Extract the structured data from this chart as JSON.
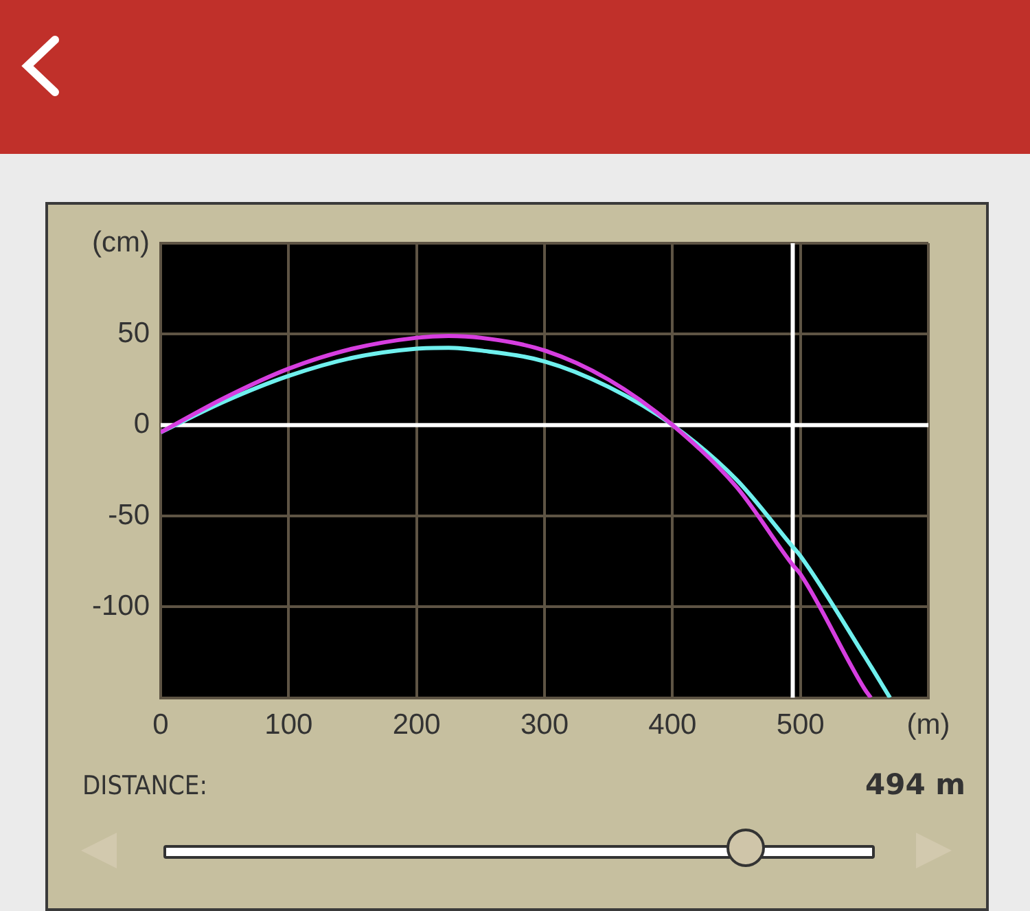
{
  "chart_data": {
    "type": "line",
    "annotations": [
      "DISTANCE:",
      "494 m"
    ],
    "xlim": [
      0,
      600
    ],
    "xticks": [
      0,
      100,
      200,
      300,
      400,
      500,
      {
        "value": 600,
        "label": "(m)"
      }
    ],
    "ylim": [
      -150,
      100
    ],
    "yticks": [
      {
        "value": -150,
        "label": null
      },
      -100,
      -50,
      0,
      50,
      {
        "value": 100,
        "label": "(cm)"
      }
    ],
    "grid": true,
    "legend": false,
    "marker": "none",
    "line_style": "solid",
    "ref_lines": [
      {
        "axis": "y",
        "value": 0,
        "color": "#ffffff"
      },
      {
        "axis": "x",
        "value": 494,
        "color": "#ffffff"
      }
    ],
    "series": [
      {
        "color": "#d63ee0",
        "x": [
          0,
          50,
          100,
          150,
          200,
          225,
          250,
          300,
          350,
          400,
          450,
          494,
          500,
          550,
          555
        ],
        "values": [
          -4,
          15,
          31,
          42,
          48,
          49,
          48,
          41,
          25,
          0,
          -34,
          -77,
          -82,
          -145,
          -150
        ]
      },
      {
        "color": "#6ff0ee",
        "x": [
          0,
          50,
          100,
          150,
          200,
          225,
          250,
          300,
          350,
          400,
          450,
          494,
          500,
          550,
          570
        ],
        "values": [
          -4,
          13,
          27,
          37,
          42,
          42.5,
          41,
          35,
          21,
          0,
          -30,
          -67,
          -72,
          -127,
          -150
        ]
      }
    ]
  }
}
